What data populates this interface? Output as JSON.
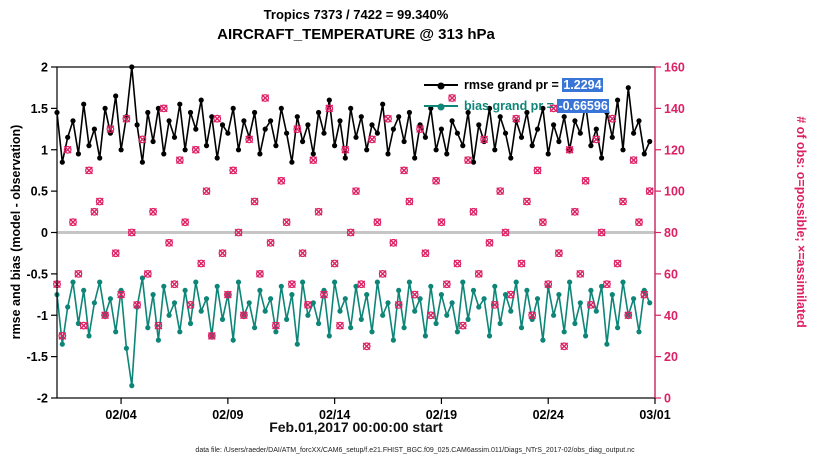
{
  "titles": {
    "line1": "Tropics 7373 / 7422 = 99.340%",
    "line2": "AIRCRAFT_TEMPERATURE @ 313 hPa"
  },
  "footer": {
    "text": "data file: /Users/raeder/DAI/ATM_forcXX/CAM6_setup/f.e21.FHIST_BGC.f09_025.CAM6assim.011/Diags_NTrS_2017-02/obs_diag_output.nc"
  },
  "legend": {
    "items": [
      {
        "sample_color": "#000000",
        "text_color": "#000000",
        "prefix": "rmse grand pr = ",
        "value": "1.2294",
        "highlight": "#3875d7"
      },
      {
        "sample_color": "#0d8577",
        "text_color": "#0d8577",
        "prefix": "bias grand pr = ",
        "value": "-0.66596",
        "highlight": "#3875d7"
      }
    ]
  },
  "colors": {
    "obs": "#dd1f63",
    "bias": "#0d8577",
    "rmse": "#000000",
    "zero_line": "#c6c6c6",
    "axis": "#000000"
  },
  "chart_data": {
    "type": "line",
    "title": "Tropics 7373 / 7422 = 99.340%",
    "subtitle": "AIRCRAFT_TEMPERATURE @ 313 hPa",
    "xlabel": "Feb.01,2017 00:00:00 start",
    "ylabel_left": "rmse and bias (model - observation)",
    "ylabel_right": "# of obs: o=possible; ×=assimilated",
    "ylim_left": [
      -2,
      2
    ],
    "ylim_right": [
      0,
      160
    ],
    "yticks_left": [
      -2,
      -1.5,
      -1,
      -0.5,
      0,
      0.5,
      1,
      1.5,
      2
    ],
    "yticks_right": [
      0,
      20,
      40,
      60,
      80,
      100,
      120,
      140,
      160
    ],
    "x_range_days": [
      0,
      28
    ],
    "x_start_day": 0,
    "x_step_days": 0.25,
    "x_ticks": [
      {
        "label": "02/04",
        "day": 3
      },
      {
        "label": "02/09",
        "day": 8
      },
      {
        "label": "02/14",
        "day": 13
      },
      {
        "label": "02/19",
        "day": 18
      },
      {
        "label": "02/24",
        "day": 23
      },
      {
        "label": "03/01",
        "day": 28
      }
    ],
    "zero_line": {
      "value": 0,
      "color": "#c6c6c6"
    },
    "grid": false,
    "legend_position": "top-right-inside",
    "series": [
      {
        "name": "rmse",
        "axis": "left",
        "style": "line-dot",
        "color": "#000000",
        "values": [
          1.45,
          0.85,
          1.15,
          1.35,
          0.95,
          1.55,
          1.05,
          1.25,
          0.9,
          1.5,
          1.2,
          1.65,
          1.0,
          1.4,
          2.0,
          1.3,
          0.85,
          1.45,
          1.1,
          1.5,
          0.95,
          1.35,
          1.15,
          1.55,
          1.0,
          1.45,
          1.25,
          1.6,
          1.05,
          1.4,
          0.9,
          1.3,
          1.2,
          1.5,
          1.0,
          1.35,
          1.15,
          1.45,
          0.95,
          1.25,
          1.35,
          1.05,
          1.5,
          1.2,
          0.85,
          1.4,
          1.1,
          1.3,
          0.95,
          1.45,
          1.2,
          1.6,
          1.05,
          1.35,
          0.9,
          1.5,
          1.15,
          1.4,
          1.0,
          1.3,
          1.2,
          1.55,
          0.95,
          1.25,
          1.4,
          1.1,
          1.45,
          0.9,
          1.3,
          1.15,
          1.5,
          1.0,
          1.25,
          0.95,
          1.35,
          1.2,
          1.05,
          1.45,
          0.85,
          1.3,
          1.1,
          1.5,
          1.0,
          1.4,
          1.2,
          0.9,
          1.35,
          1.15,
          1.45,
          1.05,
          1.25,
          1.5,
          0.95,
          1.3,
          1.1,
          1.4,
          1.0,
          1.35,
          1.2,
          1.55,
          1.05,
          1.25,
          0.9,
          1.45,
          1.15,
          1.6,
          1.0,
          1.75,
          1.2,
          1.35,
          0.95,
          1.1
        ]
      },
      {
        "name": "bias",
        "axis": "left",
        "style": "line-dot",
        "color": "#0d8577",
        "values": [
          -0.75,
          -1.35,
          -0.9,
          -0.6,
          -1.1,
          -0.7,
          -1.25,
          -0.85,
          -0.6,
          -1.0,
          -0.8,
          -1.2,
          -0.7,
          -1.4,
          -1.85,
          -0.9,
          -0.55,
          -1.15,
          -0.75,
          -1.3,
          -0.65,
          -1.0,
          -0.85,
          -1.2,
          -0.7,
          -1.1,
          -0.6,
          -0.95,
          -0.8,
          -1.25,
          -0.65,
          -1.05,
          -0.75,
          -1.3,
          -0.6,
          -1.0,
          -0.85,
          -1.15,
          -0.7,
          -0.95,
          -0.8,
          -1.2,
          -0.65,
          -1.05,
          -0.75,
          -1.35,
          -0.6,
          -1.0,
          -0.85,
          -1.1,
          -0.7,
          -1.25,
          -0.6,
          -0.95,
          -0.8,
          -1.15,
          -0.65,
          -1.05,
          -0.75,
          -1.2,
          -0.6,
          -1.0,
          -0.85,
          -1.3,
          -0.7,
          -1.15,
          -0.6,
          -0.95,
          -0.8,
          -1.25,
          -0.65,
          -1.1,
          -0.75,
          -1.0,
          -0.85,
          -1.2,
          -0.6,
          -1.05,
          -0.7,
          -0.9,
          -0.8,
          -1.25,
          -0.65,
          -1.1,
          -0.75,
          -0.95,
          -0.6,
          -1.15,
          -0.7,
          -1.05,
          -0.8,
          -1.3,
          -0.65,
          -1.0,
          -0.75,
          -1.2,
          -0.6,
          -1.1,
          -0.85,
          -1.25,
          -0.7,
          -0.95,
          -0.65,
          -1.35,
          -0.75,
          -1.15,
          -0.6,
          -1.0,
          -0.8,
          -1.2,
          -0.7,
          -0.85
        ]
      },
      {
        "name": "obs possible",
        "axis": "right",
        "style": "scatter-o",
        "color": "#dd1f63",
        "values": [
          55,
          30,
          120,
          85,
          60,
          35,
          110,
          90,
          95,
          40,
          130,
          70,
          50,
          135,
          80,
          45,
          125,
          60,
          90,
          35,
          140,
          75,
          55,
          115,
          85,
          45,
          120,
          65,
          100,
          30,
          135,
          70,
          50,
          110,
          80,
          40,
          125,
          95,
          60,
          145,
          75,
          35,
          105,
          85,
          55,
          130,
          70,
          45,
          115,
          90,
          50,
          140,
          65,
          35,
          120,
          80,
          100,
          55,
          25,
          125,
          85,
          60,
          135,
          75,
          45,
          110,
          95,
          50,
          130,
          70,
          40,
          105,
          85,
          55,
          145,
          65,
          35,
          115,
          90,
          60,
          125,
          75,
          45,
          100,
          80,
          50,
          135,
          65,
          95,
          40,
          110,
          85,
          55,
          140,
          70,
          25,
          120,
          90,
          60,
          105,
          45,
          125,
          80,
          55,
          135,
          65,
          95,
          40,
          115,
          85,
          50,
          100
        ]
      },
      {
        "name": "obs assimilated",
        "axis": "right",
        "style": "scatter-x",
        "color": "#dd1f63",
        "values": [
          55,
          30,
          120,
          85,
          60,
          35,
          110,
          90,
          95,
          40,
          130,
          70,
          50,
          135,
          80,
          45,
          125,
          60,
          90,
          35,
          140,
          75,
          55,
          115,
          85,
          45,
          120,
          65,
          100,
          30,
          135,
          70,
          50,
          110,
          80,
          40,
          125,
          95,
          60,
          145,
          75,
          35,
          105,
          85,
          55,
          130,
          70,
          45,
          115,
          90,
          50,
          140,
          65,
          35,
          120,
          80,
          100,
          55,
          25,
          125,
          85,
          60,
          135,
          75,
          45,
          110,
          95,
          50,
          130,
          70,
          40,
          105,
          85,
          55,
          145,
          65,
          35,
          115,
          90,
          60,
          125,
          75,
          45,
          100,
          80,
          50,
          135,
          65,
          95,
          40,
          110,
          85,
          55,
          140,
          70,
          25,
          120,
          90,
          60,
          105,
          45,
          125,
          80,
          55,
          135,
          65,
          95,
          40,
          115,
          85,
          50,
          100
        ]
      }
    ]
  }
}
